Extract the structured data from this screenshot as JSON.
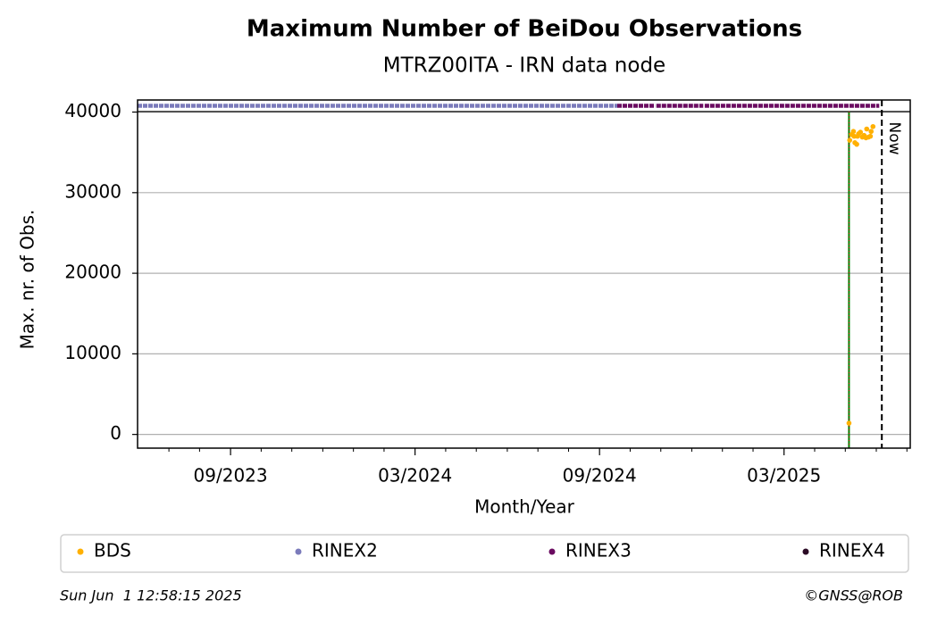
{
  "chart_data": {
    "type": "scatter",
    "title": "Maximum Number of BeiDou Observations",
    "subtitle": "MTRZ00ITA - IRN data node",
    "xlabel": "Month/Year",
    "ylabel": "Max. nr. of Obs.",
    "xlim": [
      2023.415,
      2025.509
    ],
    "ylim": [
      -1700,
      41500
    ],
    "xticks": [
      {
        "value": 2023.667,
        "label": "09/2023"
      },
      {
        "value": 2024.167,
        "label": "03/2024"
      },
      {
        "value": 2024.667,
        "label": "09/2024"
      },
      {
        "value": 2025.167,
        "label": "03/2025"
      }
    ],
    "xminorticks": [
      2023.5,
      2023.583,
      2023.75,
      2023.833,
      2023.917,
      2024.0,
      2024.083,
      2024.25,
      2024.333,
      2024.417,
      2024.5,
      2024.583,
      2024.75,
      2024.833,
      2024.917,
      2025.0,
      2025.083,
      2025.25,
      2025.333,
      2025.417,
      2025.5
    ],
    "yticks": [
      0,
      10000,
      20000,
      30000,
      40000
    ],
    "grid": true,
    "series": [
      {
        "name": "BDS",
        "color": "#ffb000",
        "x": [
          2025.343,
          2025.345,
          2025.35,
          2025.355,
          2025.357,
          2025.359,
          2025.364,
          2025.366,
          2025.369,
          2025.374,
          2025.379,
          2025.384,
          2025.389,
          2025.391,
          2025.396,
          2025.401,
          2025.403,
          2025.408
        ],
        "values": [
          1400,
          36500,
          37200,
          37600,
          37000,
          36200,
          36000,
          37000,
          37300,
          37500,
          36900,
          37100,
          36800,
          37900,
          36900,
          37000,
          37600,
          38200
        ]
      },
      {
        "name": "RINEX2",
        "color": "#7b7bbb",
        "periods": [
          [
            2023.415,
            2024.715
          ]
        ]
      },
      {
        "name": "RINEX3",
        "color": "#6a0b60",
        "periods": [
          [
            2024.715,
            2024.817
          ],
          [
            2024.821,
            2024.948
          ],
          [
            2024.952,
            2025.425
          ]
        ]
      },
      {
        "name": "RINEX4",
        "color": "#2b0a25",
        "periods": []
      }
    ],
    "vlines": [
      {
        "value": 2025.343,
        "color": "#008000"
      }
    ],
    "now": {
      "value": 2025.432,
      "label": "Now"
    }
  },
  "footer": {
    "left": "Sun Jun  1 12:58:15 2025",
    "right": "©GNSS@ROB"
  }
}
